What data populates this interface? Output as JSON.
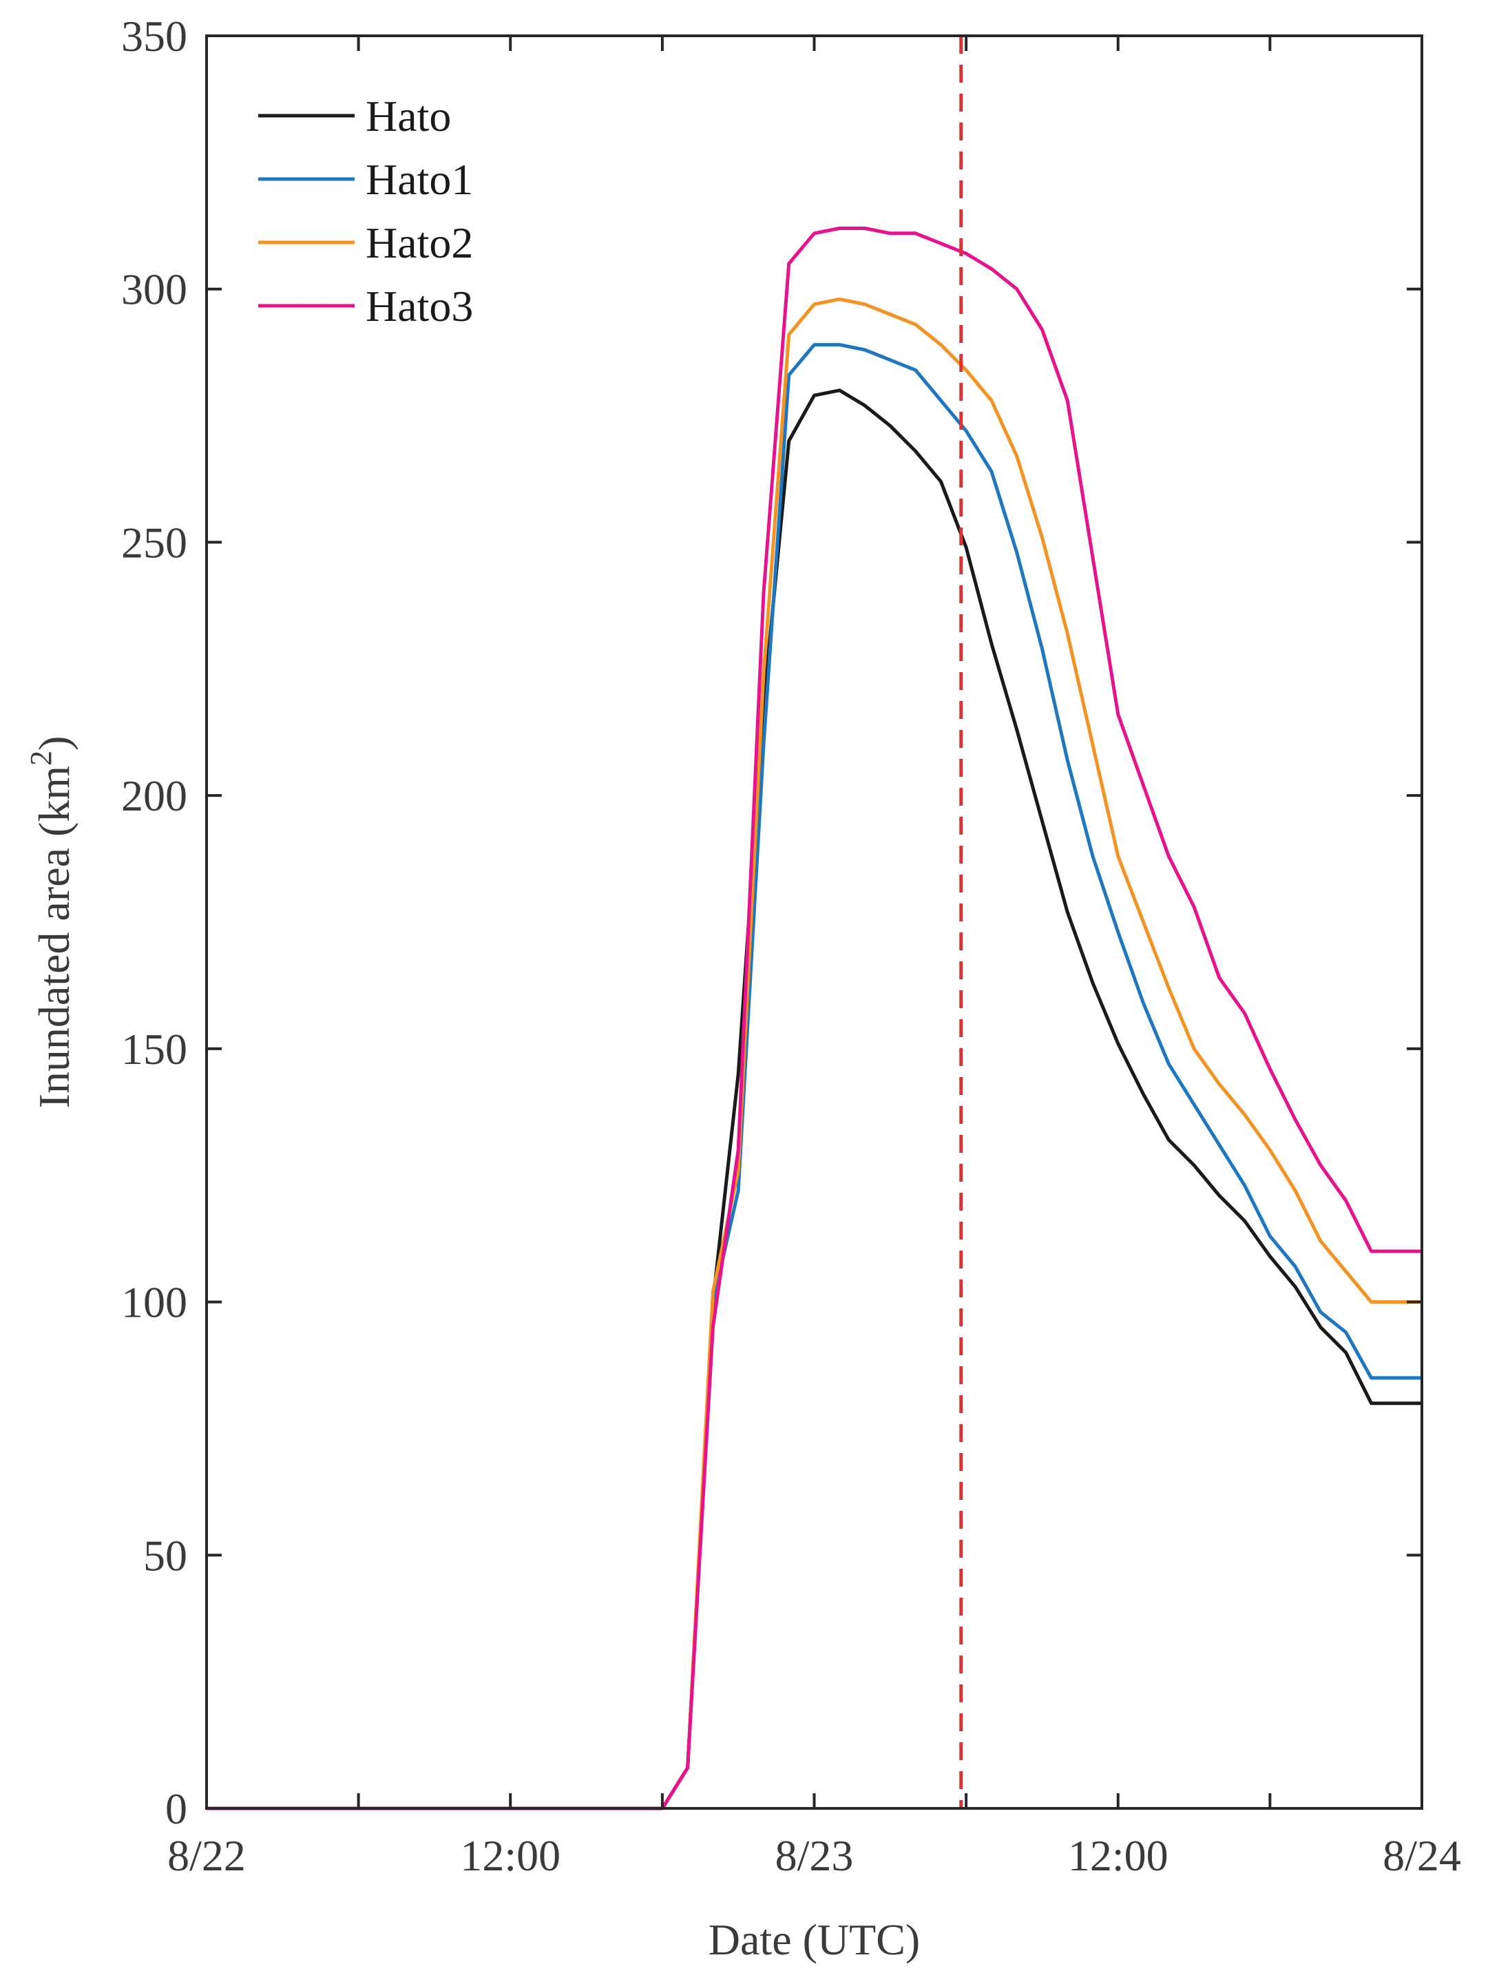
{
  "chart_data": {
    "type": "line",
    "title": "",
    "xlabel": "Date (UTC)",
    "ylabel_main": "Inundated area (km",
    "ylabel_sup": "2",
    "ylabel_close": ")",
    "xlim": [
      0,
      48
    ],
    "ylim": [
      0,
      350
    ],
    "x_unit": "hours since 8/22 00:00 UTC",
    "x_ticks": [
      0,
      6,
      12,
      18,
      24,
      30,
      36,
      42,
      48
    ],
    "x_tick_labels": [
      {
        "x": 0,
        "label": "8/22"
      },
      {
        "x": 12,
        "label": "12:00"
      },
      {
        "x": 24,
        "label": "8/23"
      },
      {
        "x": 36,
        "label": "12:00"
      },
      {
        "x": 48,
        "label": "8/24"
      }
    ],
    "y_ticks": [
      0,
      50,
      100,
      150,
      200,
      250,
      300,
      350
    ],
    "y_tick_labels": [
      "0",
      "50",
      "100",
      "150",
      "200",
      "250",
      "300",
      "350"
    ],
    "legend_position": "top-left",
    "grid": false,
    "reference_line": {
      "x": 29.8,
      "color": "#e0302f",
      "style": "dashed"
    },
    "series": [
      {
        "name": "Hato",
        "color": "#1a1a1a",
        "x": [
          0,
          18,
          19,
          20,
          21,
          22,
          23,
          24,
          25,
          26,
          27,
          28,
          29,
          30,
          31,
          32,
          33,
          34,
          35,
          36,
          37,
          38,
          39,
          40,
          41,
          42,
          43,
          44,
          45,
          46,
          47,
          48
        ],
        "y": [
          0,
          0,
          8,
          100,
          145,
          218,
          270,
          279,
          280,
          277,
          273,
          268,
          262,
          249,
          230,
          213,
          195,
          177,
          163,
          151,
          141,
          132,
          127,
          121,
          116,
          109,
          103,
          95,
          90,
          80,
          80,
          80
        ]
      },
      {
        "name": "Hato1",
        "color": "#1f77c0",
        "x": [
          0,
          18,
          19,
          20,
          21,
          22,
          23,
          24,
          25,
          26,
          27,
          28,
          29,
          30,
          31,
          32,
          33,
          34,
          35,
          36,
          37,
          38,
          39,
          40,
          41,
          42,
          43,
          44,
          45,
          46,
          47,
          48
        ],
        "y": [
          0,
          0,
          8,
          100,
          122,
          210,
          283,
          289,
          289,
          288,
          286,
          284,
          278,
          272,
          264,
          248,
          229,
          207,
          188,
          173,
          159,
          147,
          139,
          131,
          123,
          113,
          107,
          98,
          94,
          85,
          85,
          85
        ]
      },
      {
        "name": "Hato2",
        "color": "#f39324",
        "x": [
          0,
          18,
          19,
          20,
          21,
          22,
          23,
          24,
          25,
          26,
          27,
          28,
          29,
          30,
          31,
          32,
          33,
          34,
          35,
          36,
          37,
          38,
          39,
          40,
          41,
          42,
          43,
          44,
          45,
          46,
          47,
          48
        ],
        "y": [
          0,
          0,
          8,
          102,
          126,
          224,
          291,
          297,
          298,
          297,
          295,
          293,
          289,
          284,
          278,
          267,
          251,
          232,
          210,
          188,
          175,
          162,
          150,
          143,
          137,
          130,
          122,
          112,
          106,
          100,
          100,
          100
        ]
      },
      {
        "name": "Hato3",
        "color": "#e6148c",
        "x": [
          0,
          18,
          19,
          20,
          21,
          22,
          23,
          24,
          25,
          26,
          27,
          28,
          29,
          30,
          31,
          32,
          33,
          34,
          35,
          36,
          37,
          38,
          39,
          40,
          41,
          42,
          43,
          44,
          45,
          46,
          47,
          48
        ],
        "y": [
          0,
          0,
          8,
          95,
          130,
          240,
          305,
          311,
          312,
          312,
          311,
          311,
          309,
          307,
          304,
          300,
          292,
          278,
          247,
          216,
          202,
          188,
          178,
          164,
          157,
          146,
          136,
          127,
          120,
          110,
          110,
          110
        ]
      }
    ]
  }
}
